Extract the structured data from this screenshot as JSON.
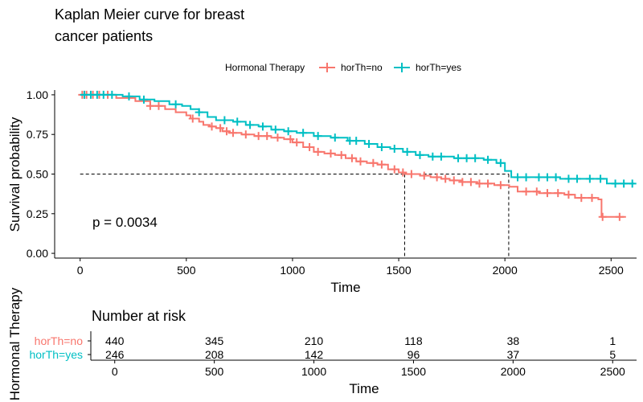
{
  "chart_data": [
    {
      "type": "line",
      "subtype": "kaplan-meier",
      "title": "Kaplan Meier curve for breast cancer patients",
      "title_lines": [
        "Kaplan Meier curve for breast",
        "cancer patients"
      ],
      "xlabel": "Time",
      "ylabel": "Survival probability",
      "xlim": [
        -120,
        2620
      ],
      "ylim": [
        -0.03,
        1.03
      ],
      "x_ticks": [
        0,
        500,
        1000,
        1500,
        2000,
        2500
      ],
      "y_ticks": [
        0.0,
        0.25,
        0.5,
        0.75,
        1.0
      ],
      "y_tick_labels": [
        "0.00",
        "0.25",
        "0.50",
        "0.75",
        "1.00"
      ],
      "grid": false,
      "legend_title": "Hormonal Therapy",
      "legend_position": "top",
      "annotation": "p = 0.0034",
      "median_line": {
        "y": 0.5,
        "x_values": [
          1528,
          2018
        ]
      },
      "series": [
        {
          "name": "horTh=no",
          "color": "#F8766D",
          "steps": [
            [
              0,
              1.0
            ],
            [
              170,
              0.98
            ],
            [
              260,
              0.96
            ],
            [
              330,
              0.93
            ],
            [
              400,
              0.91
            ],
            [
              450,
              0.89
            ],
            [
              500,
              0.87
            ],
            [
              520,
              0.85
            ],
            [
              560,
              0.83
            ],
            [
              580,
              0.81
            ],
            [
              610,
              0.8
            ],
            [
              640,
              0.79
            ],
            [
              670,
              0.77
            ],
            [
              700,
              0.76
            ],
            [
              760,
              0.75
            ],
            [
              820,
              0.74
            ],
            [
              900,
              0.73
            ],
            [
              960,
              0.72
            ],
            [
              1000,
              0.7
            ],
            [
              1050,
              0.67
            ],
            [
              1100,
              0.64
            ],
            [
              1150,
              0.63
            ],
            [
              1200,
              0.62
            ],
            [
              1250,
              0.6
            ],
            [
              1300,
              0.58
            ],
            [
              1350,
              0.57
            ],
            [
              1400,
              0.56
            ],
            [
              1450,
              0.53
            ],
            [
              1500,
              0.51
            ],
            [
              1530,
              0.5
            ],
            [
              1600,
              0.49
            ],
            [
              1650,
              0.48
            ],
            [
              1700,
              0.47
            ],
            [
              1740,
              0.46
            ],
            [
              1800,
              0.45
            ],
            [
              1870,
              0.44
            ],
            [
              1950,
              0.43
            ],
            [
              2020,
              0.42
            ],
            [
              2060,
              0.39
            ],
            [
              2160,
              0.38
            ],
            [
              2280,
              0.37
            ],
            [
              2330,
              0.35
            ],
            [
              2440,
              0.34
            ],
            [
              2455,
              0.23
            ],
            [
              2570,
              0.23
            ]
          ],
          "censored": [
            [
              10,
              1.0
            ],
            [
              30,
              1.0
            ],
            [
              60,
              1.0
            ],
            [
              90,
              1.0
            ],
            [
              130,
              1.0
            ],
            [
              330,
              0.93
            ],
            [
              370,
              0.93
            ],
            [
              530,
              0.85
            ],
            [
              620,
              0.8
            ],
            [
              660,
              0.79
            ],
            [
              690,
              0.77
            ],
            [
              720,
              0.76
            ],
            [
              780,
              0.75
            ],
            [
              840,
              0.74
            ],
            [
              880,
              0.74
            ],
            [
              930,
              0.73
            ],
            [
              990,
              0.72
            ],
            [
              1020,
              0.7
            ],
            [
              1080,
              0.67
            ],
            [
              1120,
              0.64
            ],
            [
              1180,
              0.63
            ],
            [
              1230,
              0.62
            ],
            [
              1280,
              0.6
            ],
            [
              1320,
              0.58
            ],
            [
              1380,
              0.57
            ],
            [
              1420,
              0.56
            ],
            [
              1480,
              0.53
            ],
            [
              1520,
              0.51
            ],
            [
              1560,
              0.5
            ],
            [
              1620,
              0.49
            ],
            [
              1680,
              0.48
            ],
            [
              1720,
              0.47
            ],
            [
              1760,
              0.46
            ],
            [
              1800,
              0.45
            ],
            [
              1840,
              0.45
            ],
            [
              1880,
              0.44
            ],
            [
              1920,
              0.44
            ],
            [
              1980,
              0.43
            ],
            [
              2100,
              0.39
            ],
            [
              2150,
              0.39
            ],
            [
              2200,
              0.38
            ],
            [
              2250,
              0.38
            ],
            [
              2300,
              0.37
            ],
            [
              2360,
              0.35
            ],
            [
              2410,
              0.35
            ],
            [
              2460,
              0.23
            ],
            [
              2540,
              0.23
            ]
          ]
        },
        {
          "name": "horTh=yes",
          "color": "#00BFC4",
          "steps": [
            [
              0,
              1.0
            ],
            [
              200,
              0.99
            ],
            [
              280,
              0.97
            ],
            [
              350,
              0.96
            ],
            [
              420,
              0.94
            ],
            [
              480,
              0.93
            ],
            [
              520,
              0.91
            ],
            [
              560,
              0.89
            ],
            [
              600,
              0.86
            ],
            [
              640,
              0.84
            ],
            [
              720,
              0.83
            ],
            [
              780,
              0.81
            ],
            [
              840,
              0.8
            ],
            [
              900,
              0.78
            ],
            [
              960,
              0.77
            ],
            [
              1020,
              0.76
            ],
            [
              1100,
              0.74
            ],
            [
              1180,
              0.73
            ],
            [
              1260,
              0.71
            ],
            [
              1340,
              0.69
            ],
            [
              1400,
              0.67
            ],
            [
              1460,
              0.66
            ],
            [
              1520,
              0.64
            ],
            [
              1580,
              0.62
            ],
            [
              1640,
              0.61
            ],
            [
              1760,
              0.6
            ],
            [
              1900,
              0.59
            ],
            [
              1960,
              0.57
            ],
            [
              2000,
              0.52
            ],
            [
              2030,
              0.48
            ],
            [
              2120,
              0.48
            ],
            [
              2260,
              0.47
            ],
            [
              2480,
              0.44
            ],
            [
              2610,
              0.44
            ]
          ],
          "censored": [
            [
              20,
              1.0
            ],
            [
              50,
              1.0
            ],
            [
              80,
              1.0
            ],
            [
              110,
              1.0
            ],
            [
              150,
              1.0
            ],
            [
              230,
              0.99
            ],
            [
              300,
              0.97
            ],
            [
              450,
              0.94
            ],
            [
              560,
              0.89
            ],
            [
              680,
              0.84
            ],
            [
              740,
              0.83
            ],
            [
              800,
              0.81
            ],
            [
              860,
              0.8
            ],
            [
              920,
              0.78
            ],
            [
              980,
              0.77
            ],
            [
              1050,
              0.76
            ],
            [
              1120,
              0.74
            ],
            [
              1200,
              0.73
            ],
            [
              1270,
              0.71
            ],
            [
              1300,
              0.71
            ],
            [
              1360,
              0.69
            ],
            [
              1420,
              0.67
            ],
            [
              1480,
              0.66
            ],
            [
              1540,
              0.64
            ],
            [
              1600,
              0.62
            ],
            [
              1660,
              0.61
            ],
            [
              1700,
              0.61
            ],
            [
              1780,
              0.6
            ],
            [
              1820,
              0.6
            ],
            [
              1860,
              0.6
            ],
            [
              1920,
              0.59
            ],
            [
              1980,
              0.57
            ],
            [
              2060,
              0.48
            ],
            [
              2100,
              0.48
            ],
            [
              2160,
              0.48
            ],
            [
              2200,
              0.48
            ],
            [
              2240,
              0.48
            ],
            [
              2300,
              0.47
            ],
            [
              2340,
              0.47
            ],
            [
              2400,
              0.47
            ],
            [
              2450,
              0.47
            ],
            [
              2520,
              0.44
            ],
            [
              2560,
              0.44
            ],
            [
              2600,
              0.44
            ]
          ]
        }
      ]
    },
    {
      "type": "table",
      "title": "Number at risk",
      "xlabel": "Time",
      "ylabel": "Hormonal Therapy",
      "x_ticks": [
        0,
        500,
        1000,
        1500,
        2000,
        2500
      ],
      "rows": [
        {
          "name": "horTh=no",
          "color": "#F8766D",
          "values": [
            440,
            345,
            210,
            118,
            38,
            1
          ]
        },
        {
          "name": "horTh=yes",
          "color": "#00BFC4",
          "values": [
            246,
            208,
            142,
            96,
            37,
            5
          ]
        }
      ]
    }
  ]
}
